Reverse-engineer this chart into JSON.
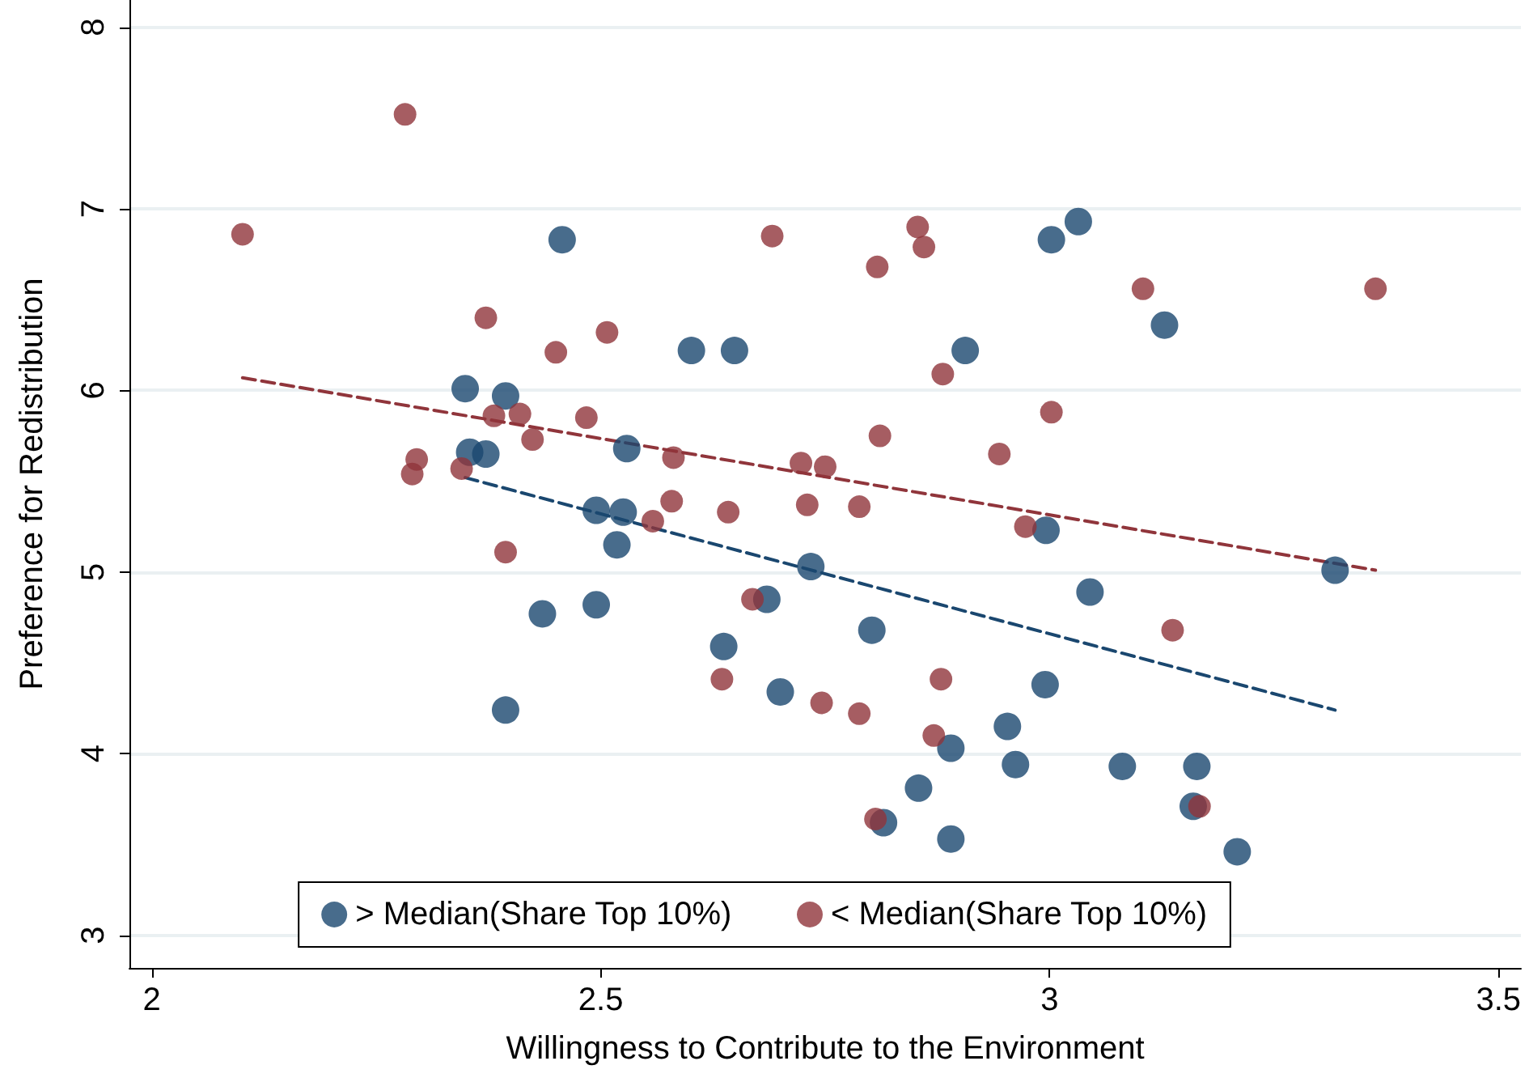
{
  "chart_data": {
    "type": "scatter",
    "xlabel": "Willingness to Contribute to the Environment",
    "ylabel": "Preference for Redistribution",
    "xlim": [
      1.975,
      3.525
    ],
    "xticks": [
      2,
      2.5,
      3,
      3.5
    ],
    "ylim": [
      2.82,
      8.15
    ],
    "yticks": [
      3,
      4,
      5,
      6,
      7,
      8
    ],
    "grid": "y",
    "legend": "bottom",
    "marker": "circle",
    "series": [
      {
        "name": "> Median(Share Top 10%)",
        "color": "#1a476f",
        "x": [
          2.349,
          2.354,
          2.372,
          2.394,
          2.394,
          2.435,
          2.457,
          2.495,
          2.495,
          2.518,
          2.525,
          2.529,
          2.601,
          2.649,
          2.637,
          2.685,
          2.7,
          2.734,
          2.802,
          2.815,
          2.854,
          2.89,
          2.89,
          2.906,
          2.953,
          2.962,
          2.995,
          2.996,
          3.002,
          3.032,
          3.045,
          3.081,
          3.128,
          3.164,
          3.16,
          3.209,
          3.318
        ],
        "values": [
          6.01,
          5.66,
          5.65,
          5.97,
          4.24,
          4.77,
          6.83,
          5.34,
          4.82,
          5.15,
          5.33,
          5.68,
          6.22,
          6.22,
          4.59,
          4.85,
          4.34,
          5.03,
          4.68,
          3.62,
          3.81,
          3.53,
          4.03,
          6.22,
          4.15,
          3.94,
          4.38,
          5.23,
          6.83,
          6.93,
          4.89,
          3.93,
          6.36,
          3.93,
          3.71,
          3.46,
          5.01
        ]
      },
      {
        "name": "< Median(Share Top 10%)",
        "color": "#90353b",
        "x": [
          2.101,
          2.282,
          2.29,
          2.295,
          2.345,
          2.372,
          2.381,
          2.394,
          2.41,
          2.424,
          2.45,
          2.484,
          2.507,
          2.558,
          2.579,
          2.581,
          2.635,
          2.642,
          2.669,
          2.691,
          2.723,
          2.73,
          2.75,
          2.746,
          2.788,
          2.788,
          2.808,
          2.806,
          2.811,
          2.853,
          2.86,
          2.871,
          2.881,
          2.879,
          2.944,
          2.973,
          3.002,
          3.104,
          3.137,
          3.167,
          3.363
        ],
        "values": [
          6.86,
          7.52,
          5.54,
          5.62,
          5.57,
          6.4,
          5.86,
          5.11,
          5.87,
          5.73,
          6.21,
          5.85,
          6.32,
          5.28,
          5.39,
          5.63,
          4.41,
          5.33,
          4.85,
          6.85,
          5.6,
          5.37,
          5.58,
          4.28,
          5.36,
          4.22,
          6.68,
          3.64,
          5.75,
          6.9,
          6.79,
          4.1,
          6.09,
          4.41,
          5.65,
          5.25,
          5.88,
          6.56,
          4.68,
          3.71,
          6.56
        ]
      },
      {
        "type": "line",
        "color": "#1a476f",
        "line_style": "dashed",
        "marker": "none",
        "x": [
          2.349,
          3.318
        ],
        "values": [
          5.52,
          4.24
        ]
      },
      {
        "type": "line",
        "color": "#90353b",
        "line_style": "dashed",
        "marker": "none",
        "x": [
          2.101,
          3.363
        ],
        "values": [
          6.07,
          5.01
        ]
      }
    ]
  }
}
